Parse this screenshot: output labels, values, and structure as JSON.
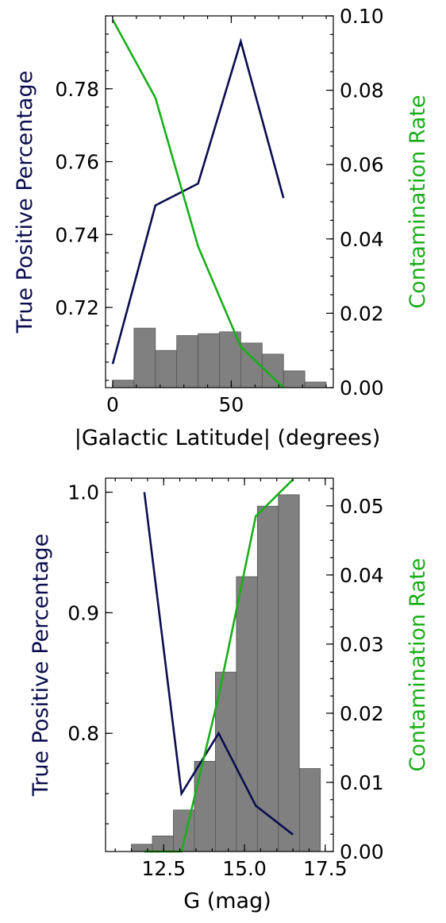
{
  "colors": {
    "tpr": "#0b0c4e",
    "contamination": "#19ae19",
    "histogram": "#808080"
  },
  "chart_data": [
    {
      "type": "line",
      "xlabel": "|Galactic Latitude| (degrees)",
      "ylabel_left": "True Positive Percentage",
      "ylabel_right": "Contamination Rate",
      "xlim": [
        -3,
        93
      ],
      "ylim_left": [
        0.698,
        0.8
      ],
      "ylim_right": [
        0,
        0.1
      ],
      "xticks": [
        0,
        50
      ],
      "xtick_labels": [
        "0",
        "50"
      ],
      "yticks_left": [
        0.72,
        0.74,
        0.76,
        0.78
      ],
      "ytick_labels_left": [
        "0.72",
        "0.74",
        "0.76",
        "0.78"
      ],
      "yticks_right": [
        0,
        0.02,
        0.04,
        0.06,
        0.08,
        0.1
      ],
      "ytick_labels_right": [
        "0.00",
        "0.02",
        "0.04",
        "0.06",
        "0.08",
        "0.10"
      ],
      "series": [
        {
          "axis": "left",
          "color_key": "tpr",
          "x": [
            0,
            18,
            36,
            54,
            72
          ],
          "y": [
            0.7045,
            0.748,
            0.754,
            0.793,
            0.75
          ]
        },
        {
          "axis": "right",
          "color_key": "contamination",
          "x": [
            0,
            18,
            36,
            54,
            72
          ],
          "y": [
            0.099,
            0.078,
            0.038,
            0.011,
            0.0
          ]
        }
      ],
      "histogram": {
        "bin_edges": [
          0,
          9,
          18,
          27,
          36,
          45,
          54,
          63,
          72,
          81,
          90
        ],
        "counts": [
          2,
          16,
          10,
          14,
          14.5,
          15,
          12,
          9,
          4.5,
          1.5
        ],
        "count_max": 100
      }
    },
    {
      "type": "line",
      "xlabel": "G (mag)",
      "ylabel_left": "True Positive Percentage",
      "ylabel_right": "Contamination Rate",
      "xlim": [
        10.7,
        17.75
      ],
      "ylim_left": [
        0.702,
        1.0116
      ],
      "ylim_right": [
        0,
        0.054
      ],
      "xticks": [
        12.5,
        15.0,
        17.5
      ],
      "xtick_labels": [
        "12.5",
        "15.0",
        "17.5"
      ],
      "yticks_left": [
        0.8,
        0.9,
        1.0
      ],
      "ytick_labels_left": [
        "0.8",
        "0.9",
        "1.0"
      ],
      "yticks_right": [
        0,
        0.01,
        0.02,
        0.03,
        0.04,
        0.05
      ],
      "ytick_labels_right": [
        "0.00",
        "0.01",
        "0.02",
        "0.03",
        "0.04",
        "0.05"
      ],
      "series": [
        {
          "axis": "left",
          "color_key": "tpr",
          "x": [
            11.9,
            13.05,
            14.2,
            15.35,
            16.5
          ],
          "y": [
            1.0,
            0.75,
            0.8,
            0.74,
            0.716
          ]
        },
        {
          "axis": "right",
          "color_key": "contamination",
          "x": [
            11.9,
            13.05,
            14.2,
            15.35,
            16.5
          ],
          "y": [
            0.0,
            0.0,
            0.0225,
            0.0485,
            0.0538
          ]
        }
      ],
      "histogram": {
        "bin_edges": [
          11.5,
          12.15,
          12.8,
          13.45,
          14.1,
          14.75,
          15.4,
          16.05,
          16.7,
          17.35
        ],
        "counts": [
          0.7,
          1.5,
          4,
          8.7,
          17.3,
          26.5,
          33.3,
          34.4,
          8
        ],
        "count_max": 36
      }
    }
  ]
}
